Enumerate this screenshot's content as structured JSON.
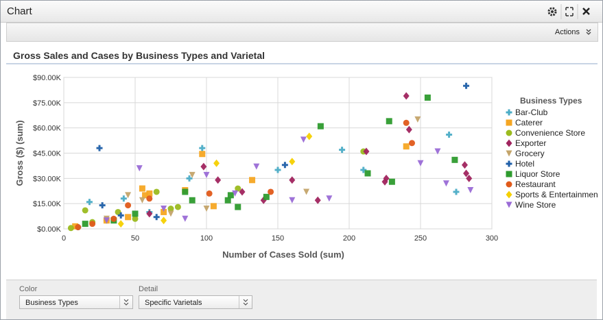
{
  "window": {
    "title": "Chart",
    "actions": "Actions"
  },
  "controls": {
    "color_label": "Color",
    "color_value": "Business Types",
    "detail_label": "Detail",
    "detail_value": "Specific Varietals"
  },
  "chart_data": {
    "type": "scatter",
    "title": "Gross Sales and Cases by Business Types and Varietal",
    "x_label": "Number of Cases Sold (sum)",
    "y_label": "Gross ($) (sum)",
    "legend_title": "Business Types",
    "legend": "right",
    "grid": true,
    "xlim": [
      0,
      300
    ],
    "xticks": [
      0,
      50,
      100,
      150,
      200,
      250,
      300
    ],
    "ylim": [
      0,
      90000
    ],
    "yticks": [
      {
        "value": 0,
        "label": "$0.00K"
      },
      {
        "value": 15000,
        "label": "$15.00K"
      },
      {
        "value": 30000,
        "label": "$30.00K"
      },
      {
        "value": 45000,
        "label": "$45.00K"
      },
      {
        "value": 60000,
        "label": "$60.00K"
      },
      {
        "value": 75000,
        "label": "$75.00K"
      },
      {
        "value": 90000,
        "label": "$90.00K"
      }
    ],
    "series": [
      {
        "name": "Bar-Club",
        "color": "#4bacc6",
        "marker": "plus",
        "x": [
          18,
          42,
          88,
          97,
          150,
          195,
          210,
          270,
          275,
          10,
          30,
          60
        ],
        "values": [
          16000,
          18000,
          30000,
          48000,
          35000,
          47000,
          35000,
          56000,
          22000,
          1000,
          5000,
          10000
        ]
      },
      {
        "name": "Caterer",
        "color": "#f5a623",
        "marker": "square",
        "x": [
          55,
          57,
          60,
          85,
          97,
          105,
          132,
          240,
          30,
          45,
          70,
          8
        ],
        "values": [
          24000,
          20000,
          21000,
          23000,
          44500,
          13500,
          29000,
          49000,
          5000,
          7000,
          10000,
          1500
        ]
      },
      {
        "name": "Convenience Store",
        "color": "#9bbb1f",
        "marker": "circle",
        "x": [
          15,
          38,
          65,
          75,
          122,
          210,
          20,
          50,
          5,
          80
        ],
        "values": [
          11000,
          10000,
          22000,
          12000,
          24000,
          46000,
          4000,
          6000,
          500,
          13000
        ]
      },
      {
        "name": "Exporter",
        "color": "#a0245e",
        "marker": "diamond",
        "x": [
          98,
          108,
          140,
          160,
          178,
          212,
          225,
          226,
          240,
          242,
          281,
          282,
          284,
          125,
          60
        ],
        "values": [
          37000,
          29000,
          17000,
          29000,
          17000,
          46000,
          28000,
          30000,
          79000,
          59000,
          38000,
          33000,
          30000,
          22000,
          9000
        ]
      },
      {
        "name": "Grocery",
        "color": "#c4a46a",
        "marker": "triangle-down",
        "x": [
          45,
          55,
          90,
          100,
          170,
          248,
          30,
          75
        ],
        "values": [
          20000,
          17000,
          32000,
          12000,
          22000,
          65000,
          6000,
          9000
        ]
      },
      {
        "name": "Hotel",
        "color": "#1f5fa8",
        "marker": "plus",
        "x": [
          25,
          27,
          155,
          282,
          40,
          65
        ],
        "values": [
          48000,
          14000,
          38000,
          85000,
          8000,
          7000
        ]
      },
      {
        "name": "Liquor Store",
        "color": "#2e9b2e",
        "marker": "square",
        "x": [
          15,
          35,
          50,
          85,
          90,
          115,
          117,
          122,
          142,
          180,
          213,
          228,
          230,
          255,
          274
        ],
        "values": [
          3000,
          5000,
          9000,
          22000,
          17000,
          17000,
          20000,
          13000,
          19000,
          61000,
          33000,
          64000,
          28000,
          78000,
          41000
        ]
      },
      {
        "name": "Restaurant",
        "color": "#e05a1a",
        "marker": "circle",
        "x": [
          20,
          45,
          60,
          102,
          145,
          240,
          244,
          10,
          35
        ],
        "values": [
          3000,
          14000,
          18000,
          21000,
          22000,
          63000,
          51000,
          1000,
          6000
        ]
      },
      {
        "name": "Sports & Entertainmen",
        "color": "#f5d000",
        "marker": "diamond",
        "x": [
          172,
          160,
          107,
          70,
          40
        ],
        "values": [
          55000,
          40000,
          39000,
          5000,
          3000
        ]
      },
      {
        "name": "Wine Store",
        "color": "#9a6bd6",
        "marker": "triangle-down",
        "x": [
          53,
          100,
          120,
          135,
          160,
          168,
          186,
          250,
          262,
          268,
          285,
          70,
          85,
          30
        ],
        "values": [
          36000,
          32000,
          21000,
          37000,
          17000,
          53000,
          18000,
          39000,
          46000,
          27000,
          23000,
          12000,
          6000,
          5000
        ]
      }
    ]
  }
}
